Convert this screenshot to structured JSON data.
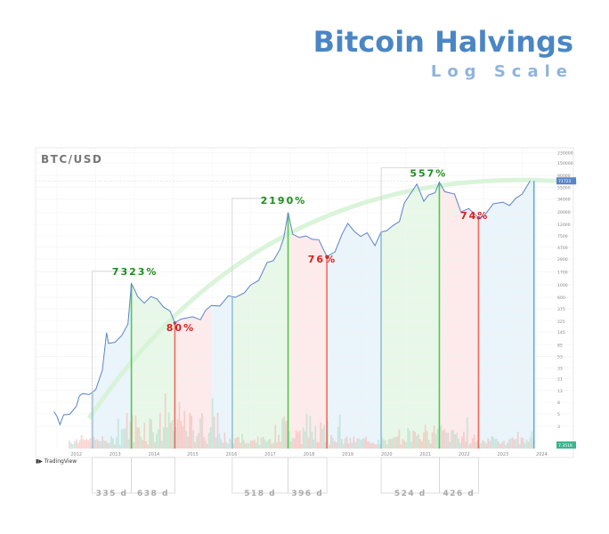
{
  "header": {
    "title": "Bitcoin Halvings",
    "subtitle": "Log Scale"
  },
  "chart_data": {
    "type": "line",
    "symbol": "BTC/USD",
    "watermark": "TradingView",
    "y_scale": "log",
    "y_ticks": [
      "230000",
      "150000",
      "90000",
      "55000",
      "34000",
      "20000",
      "12000",
      "7500",
      "4700",
      "2900",
      "1700",
      "1000",
      "600",
      "375",
      "225",
      "145",
      "85",
      "53",
      "33",
      "21",
      "13",
      "8",
      "5",
      "3"
    ],
    "x_ticks": [
      "2012",
      "2013",
      "2014",
      "2015",
      "2016",
      "2017",
      "2018",
      "2019",
      "2020",
      "2021",
      "2022",
      "2023",
      "2024"
    ],
    "price_tag_top": "71722",
    "price_tag_bottom": "7.351K",
    "price_series": [
      {
        "x": 2011.92,
        "y": 5.5
      },
      {
        "x": 2012.0,
        "y": 4.5
      },
      {
        "x": 2012.08,
        "y": 3.2
      },
      {
        "x": 2012.17,
        "y": 4.8
      },
      {
        "x": 2012.33,
        "y": 4.9
      },
      {
        "x": 2012.5,
        "y": 6.8
      },
      {
        "x": 2012.58,
        "y": 10.5
      },
      {
        "x": 2012.67,
        "y": 11.5
      },
      {
        "x": 2012.83,
        "y": 11.0
      },
      {
        "x": 2013.0,
        "y": 13.5
      },
      {
        "x": 2013.17,
        "y": 30
      },
      {
        "x": 2013.28,
        "y": 140
      },
      {
        "x": 2013.33,
        "y": 90
      },
      {
        "x": 2013.5,
        "y": 95
      },
      {
        "x": 2013.67,
        "y": 125
      },
      {
        "x": 2013.83,
        "y": 200
      },
      {
        "x": 2013.92,
        "y": 1050
      },
      {
        "x": 2014.0,
        "y": 820
      },
      {
        "x": 2014.08,
        "y": 620
      },
      {
        "x": 2014.25,
        "y": 470
      },
      {
        "x": 2014.42,
        "y": 620
      },
      {
        "x": 2014.58,
        "y": 560
      },
      {
        "x": 2014.75,
        "y": 400
      },
      {
        "x": 2014.92,
        "y": 340
      },
      {
        "x": 2015.04,
        "y": 210
      },
      {
        "x": 2015.2,
        "y": 245
      },
      {
        "x": 2015.5,
        "y": 270
      },
      {
        "x": 2015.7,
        "y": 238
      },
      {
        "x": 2015.83,
        "y": 350
      },
      {
        "x": 2015.98,
        "y": 430
      },
      {
        "x": 2016.2,
        "y": 420
      },
      {
        "x": 2016.42,
        "y": 640
      },
      {
        "x": 2016.6,
        "y": 600
      },
      {
        "x": 2016.83,
        "y": 720
      },
      {
        "x": 2017.0,
        "y": 1000
      },
      {
        "x": 2017.2,
        "y": 1200
      },
      {
        "x": 2017.42,
        "y": 2500
      },
      {
        "x": 2017.58,
        "y": 2700
      },
      {
        "x": 2017.75,
        "y": 4300
      },
      {
        "x": 2017.85,
        "y": 7000
      },
      {
        "x": 2017.96,
        "y": 19500
      },
      {
        "x": 2018.08,
        "y": 8000
      },
      {
        "x": 2018.25,
        "y": 7000
      },
      {
        "x": 2018.42,
        "y": 7500
      },
      {
        "x": 2018.58,
        "y": 6500
      },
      {
        "x": 2018.75,
        "y": 6400
      },
      {
        "x": 2018.96,
        "y": 3200
      },
      {
        "x": 2019.17,
        "y": 3900
      },
      {
        "x": 2019.35,
        "y": 8000
      },
      {
        "x": 2019.5,
        "y": 12500
      },
      {
        "x": 2019.67,
        "y": 9000
      },
      {
        "x": 2019.83,
        "y": 7300
      },
      {
        "x": 2020.0,
        "y": 8500
      },
      {
        "x": 2020.2,
        "y": 5000
      },
      {
        "x": 2020.36,
        "y": 8800
      },
      {
        "x": 2020.5,
        "y": 9200
      },
      {
        "x": 2020.67,
        "y": 11500
      },
      {
        "x": 2020.83,
        "y": 13500
      },
      {
        "x": 2020.96,
        "y": 29000
      },
      {
        "x": 2021.28,
        "y": 63000
      },
      {
        "x": 2021.46,
        "y": 31000
      },
      {
        "x": 2021.58,
        "y": 40000
      },
      {
        "x": 2021.75,
        "y": 44000
      },
      {
        "x": 2021.86,
        "y": 68000
      },
      {
        "x": 2022.0,
        "y": 46000
      },
      {
        "x": 2022.25,
        "y": 42000
      },
      {
        "x": 2022.42,
        "y": 20000
      },
      {
        "x": 2022.62,
        "y": 23000
      },
      {
        "x": 2022.87,
        "y": 15800
      },
      {
        "x": 2023.0,
        "y": 16600
      },
      {
        "x": 2023.25,
        "y": 28000
      },
      {
        "x": 2023.5,
        "y": 30000
      },
      {
        "x": 2023.67,
        "y": 26000
      },
      {
        "x": 2023.83,
        "y": 35000
      },
      {
        "x": 2024.0,
        "y": 42000
      },
      {
        "x": 2024.2,
        "y": 71722
      }
    ],
    "bands": [
      {
        "from": 2012.91,
        "to": 2013.92,
        "color": "#e8f3fb"
      },
      {
        "from": 2013.92,
        "to": 2015.04,
        "color": "#e5f7e5"
      },
      {
        "from": 2015.04,
        "to": 2016.0,
        "color": "#fde8e8"
      },
      {
        "from": 2016.0,
        "to": 2016.52,
        "color": "#e8f3fb"
      },
      {
        "from": 2016.52,
        "to": 2017.96,
        "color": "#e5f7e5"
      },
      {
        "from": 2017.96,
        "to": 2018.96,
        "color": "#fde8e8"
      },
      {
        "from": 2018.96,
        "to": 2020.36,
        "color": "#e8f3fb"
      },
      {
        "from": 2020.36,
        "to": 2021.86,
        "color": "#e5f7e5"
      },
      {
        "from": 2021.86,
        "to": 2022.87,
        "color": "#fde8e8"
      },
      {
        "from": 2022.87,
        "to": 2024.3,
        "color": "#e8f3fb"
      }
    ],
    "markers": [
      {
        "x": 2012.91,
        "color": "#5aaee0",
        "kind": "halving"
      },
      {
        "x": 2013.92,
        "color": "#4ccc4c",
        "kind": "top"
      },
      {
        "x": 2015.04,
        "color": "#f06a5a",
        "kind": "bottom"
      },
      {
        "x": 2016.52,
        "color": "#5aaee0",
        "kind": "halving"
      },
      {
        "x": 2017.96,
        "color": "#4ccc4c",
        "kind": "top"
      },
      {
        "x": 2018.96,
        "color": "#f06a5a",
        "kind": "bottom"
      },
      {
        "x": 2020.36,
        "color": "#5aaee0",
        "kind": "halving"
      },
      {
        "x": 2021.86,
        "color": "#4ccc4c",
        "kind": "top"
      },
      {
        "x": 2022.87,
        "color": "#f06a5a",
        "kind": "bottom"
      },
      {
        "x": 2024.3,
        "color": "#5aaee0",
        "kind": "halving"
      }
    ],
    "gains": [
      {
        "label": "7323%",
        "x": 2013.42,
        "y": 1500,
        "color": "#1e8c1e"
      },
      {
        "label": "2190%",
        "x": 2017.25,
        "y": 28000,
        "color": "#1e8c1e"
      },
      {
        "label": "557%",
        "x": 2021.1,
        "y": 85000,
        "color": "#1e8c1e"
      }
    ],
    "drawdowns": [
      {
        "label": "80%",
        "x": 2014.82,
        "y": 150,
        "color": "#d42020"
      },
      {
        "label": "76%",
        "x": 2018.47,
        "y": 2500,
        "color": "#d42020"
      },
      {
        "label": "74%",
        "x": 2022.4,
        "y": 15000,
        "color": "#d42020"
      }
    ],
    "brackets": [
      {
        "from": 2012.91,
        "to": 2017.96,
        "top_y": 1050,
        "kind": "cycle"
      },
      {
        "from": 2016.52,
        "to": 2017.96,
        "top_y": 19500,
        "kind": "cycle"
      },
      {
        "from": 2020.36,
        "to": 2021.86,
        "top_y": 68000,
        "kind": "cycle"
      }
    ],
    "durations": [
      {
        "label": "335 d",
        "from": 2012.91,
        "to": 2013.92
      },
      {
        "label": "638 d",
        "from": 2013.92,
        "to": 2015.04
      },
      {
        "label": "518 d",
        "from": 2016.52,
        "to": 2017.96
      },
      {
        "label": "396 d",
        "from": 2017.96,
        "to": 2018.96
      },
      {
        "label": "524 d",
        "from": 2020.36,
        "to": 2021.86
      },
      {
        "label": "426 d",
        "from": 2021.86,
        "to": 2022.87
      }
    ]
  }
}
